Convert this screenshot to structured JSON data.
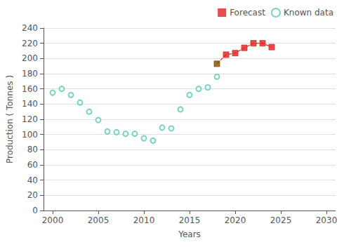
{
  "chart_data": {
    "type": "scatter",
    "xlabel": "Years",
    "ylabel": "Production ( Tonnes )",
    "xlim": [
      1999,
      2031
    ],
    "xticks": [
      2000,
      2005,
      2010,
      2015,
      2020,
      2025,
      2030
    ],
    "ylim": [
      0,
      240
    ],
    "yticks": [
      0,
      20,
      40,
      60,
      80,
      100,
      120,
      140,
      160,
      180,
      200,
      220,
      240
    ],
    "grid": true,
    "legend": "upper right",
    "series": [
      {
        "name": "Known data",
        "type": "scatter",
        "marker": "open_circle",
        "color": "#5bc8af",
        "x": [
          2000,
          2001,
          2002,
          2003,
          2004,
          2005,
          2006,
          2007,
          2008,
          2009,
          2010,
          2011,
          2012,
          2013,
          2014,
          2015,
          2016,
          2017,
          2018
        ],
        "values": [
          155,
          160,
          152,
          142,
          130,
          119,
          104,
          103,
          101,
          101,
          95,
          92,
          109,
          108,
          133,
          152,
          160,
          162,
          176
        ]
      },
      {
        "type": "line",
        "line_style": "dashed",
        "marker": "none",
        "color": "#e02020",
        "x": [
          2018,
          2019,
          2020,
          2021,
          2022,
          2023,
          2024
        ],
        "values": [
          193,
          205,
          207,
          214,
          220,
          220,
          215
        ]
      },
      {
        "name": "Forecast",
        "type": "scatter",
        "marker": "square",
        "color": "#e02020",
        "x": [
          2019,
          2020,
          2021,
          2022,
          2023,
          2024
        ],
        "values": [
          205,
          207,
          214,
          220,
          220,
          215
        ]
      },
      {
        "type": "scatter",
        "marker": "square",
        "color": "#7a5000",
        "x": [
          2018
        ],
        "values": [
          193
        ]
      }
    ]
  }
}
